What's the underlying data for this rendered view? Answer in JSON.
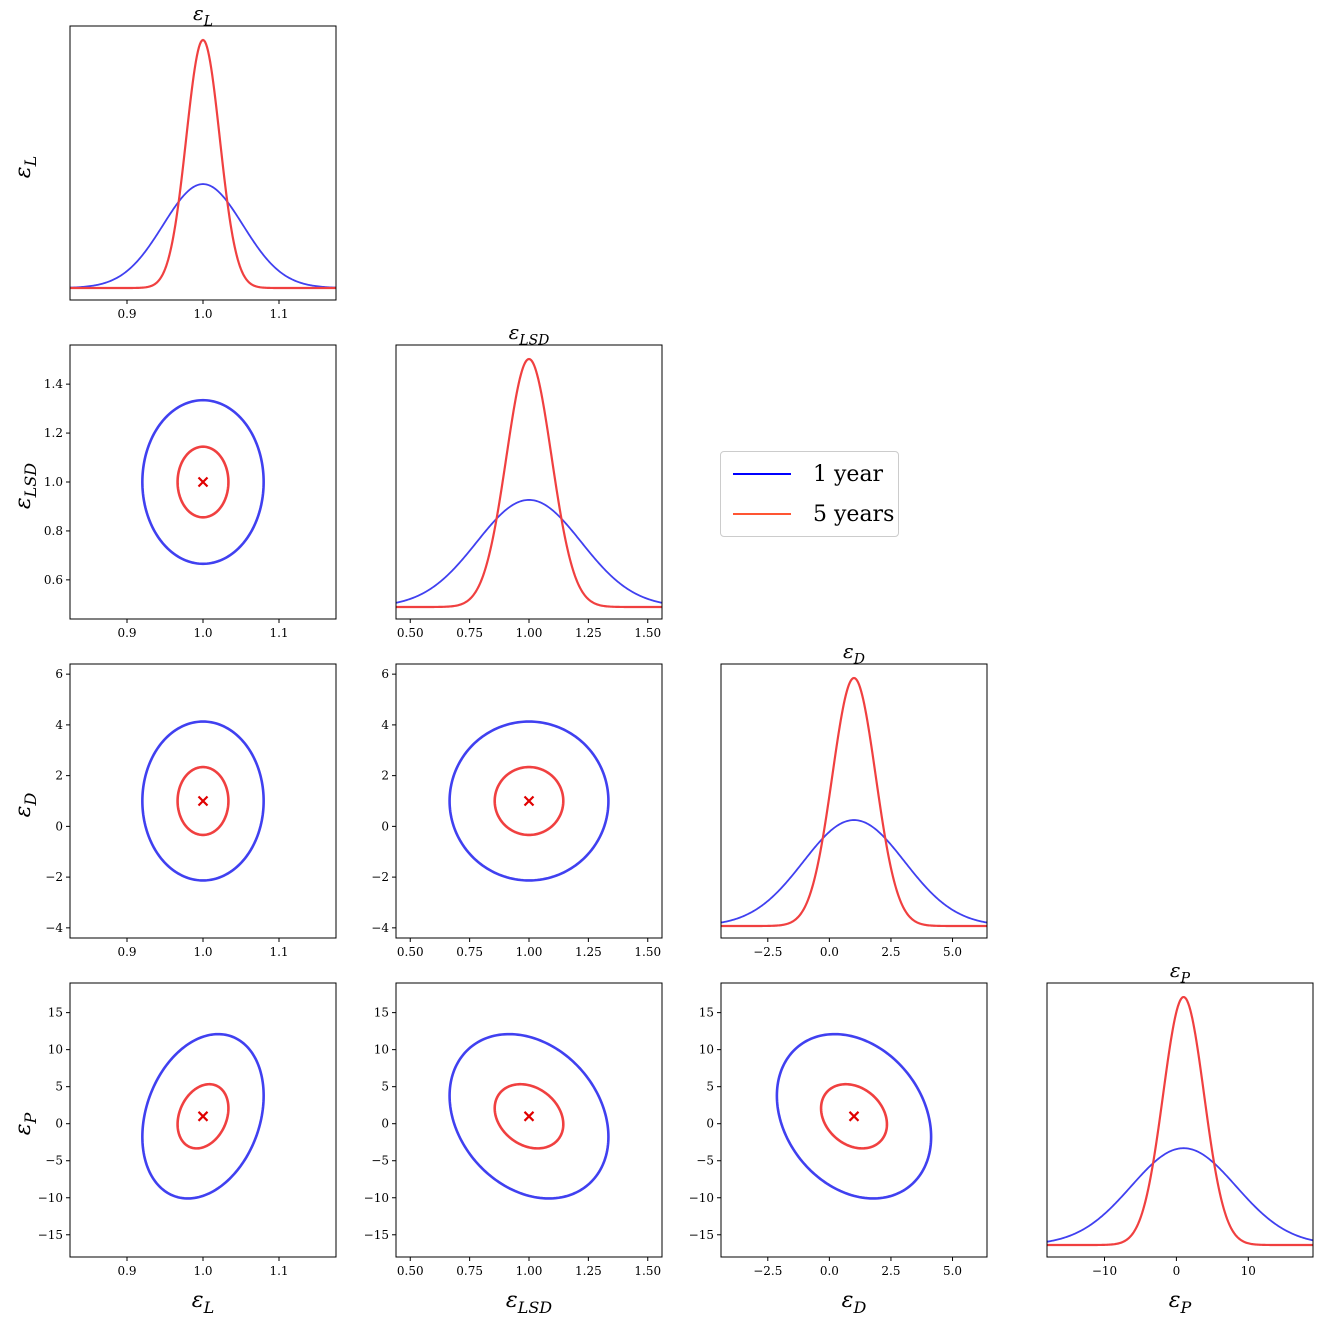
{
  "colors": {
    "year1": "#4040f0",
    "year5": "#f04040",
    "marker": "#e00000",
    "legend_year5": "#ff5533"
  },
  "legend": {
    "items": [
      {
        "label": "1 year",
        "color": "#0000ff"
      },
      {
        "label": "5 years",
        "color": "#ff5533"
      }
    ]
  },
  "chart_data": {
    "type": "corner",
    "fiducial": {
      "eps_L": 1.0,
      "eps_LSD": 1.0,
      "eps_D": 1.0,
      "eps_P": 1.0
    },
    "parameters": [
      {
        "key": "eps_L",
        "label": "ε",
        "sub": "L",
        "range": [
          0.825,
          1.175
        ],
        "ticks": [
          0.9,
          1.0,
          1.1
        ],
        "tick_labels": [
          "0.9",
          "1.0",
          "1.1"
        ]
      },
      {
        "key": "eps_LSD",
        "label": "ε",
        "sub": "LSD",
        "range": [
          0.44,
          1.56
        ],
        "ticks": [
          0.6,
          0.8,
          1.0,
          1.2,
          1.4
        ],
        "tick_labels": [
          "0.6",
          "0.8",
          "1.0",
          "1.2",
          "1.4"
        ],
        "x_ticks": [
          0.5,
          0.75,
          1.0,
          1.25,
          1.5
        ],
        "x_tick_labels": [
          "0.50",
          "0.75",
          "1.00",
          "1.25",
          "1.50"
        ]
      },
      {
        "key": "eps_D",
        "label": "ε",
        "sub": "D",
        "range": [
          -4.4,
          6.4
        ],
        "ticks": [
          -4,
          -2,
          0,
          2,
          4,
          6
        ],
        "tick_labels": [
          "−4",
          "−2",
          "0",
          "2",
          "4",
          "6"
        ],
        "x_ticks": [
          -2.5,
          0,
          2.5,
          5
        ],
        "x_tick_labels": [
          "−2.5",
          "0.0",
          "2.5",
          "5.0"
        ]
      },
      {
        "key": "eps_P",
        "label": "ε",
        "sub": "P",
        "range": [
          -18,
          19
        ],
        "ticks": [
          -15,
          -10,
          -5,
          0,
          5,
          10,
          15
        ],
        "tick_labels": [
          "−15",
          "−10",
          "−5",
          "0",
          "5",
          "10",
          "15"
        ],
        "x_ticks": [
          -10,
          0,
          10
        ],
        "x_tick_labels": [
          "−10",
          "0",
          "10"
        ]
      }
    ],
    "sigma": {
      "year1": {
        "eps_L": 0.0525,
        "eps_LSD": 0.22,
        "eps_D": 2.06,
        "eps_P": 7.3
      },
      "year5": {
        "eps_L": 0.022,
        "eps_LSD": 0.095,
        "eps_D": 0.88,
        "eps_P": 2.85
      }
    },
    "correlation": {
      "eps_L_eps_P": 0.25,
      "eps_LSD_eps_P": -0.25,
      "eps_D_eps_P": -0.25,
      "eps_L_eps_LSD": 0.0,
      "eps_L_eps_D": 0.0,
      "eps_LSD_eps_D": 0.0
    },
    "contour_level_sigma": 1.52,
    "series": [
      {
        "name": "1 year"
      },
      {
        "name": "5 years"
      }
    ]
  }
}
